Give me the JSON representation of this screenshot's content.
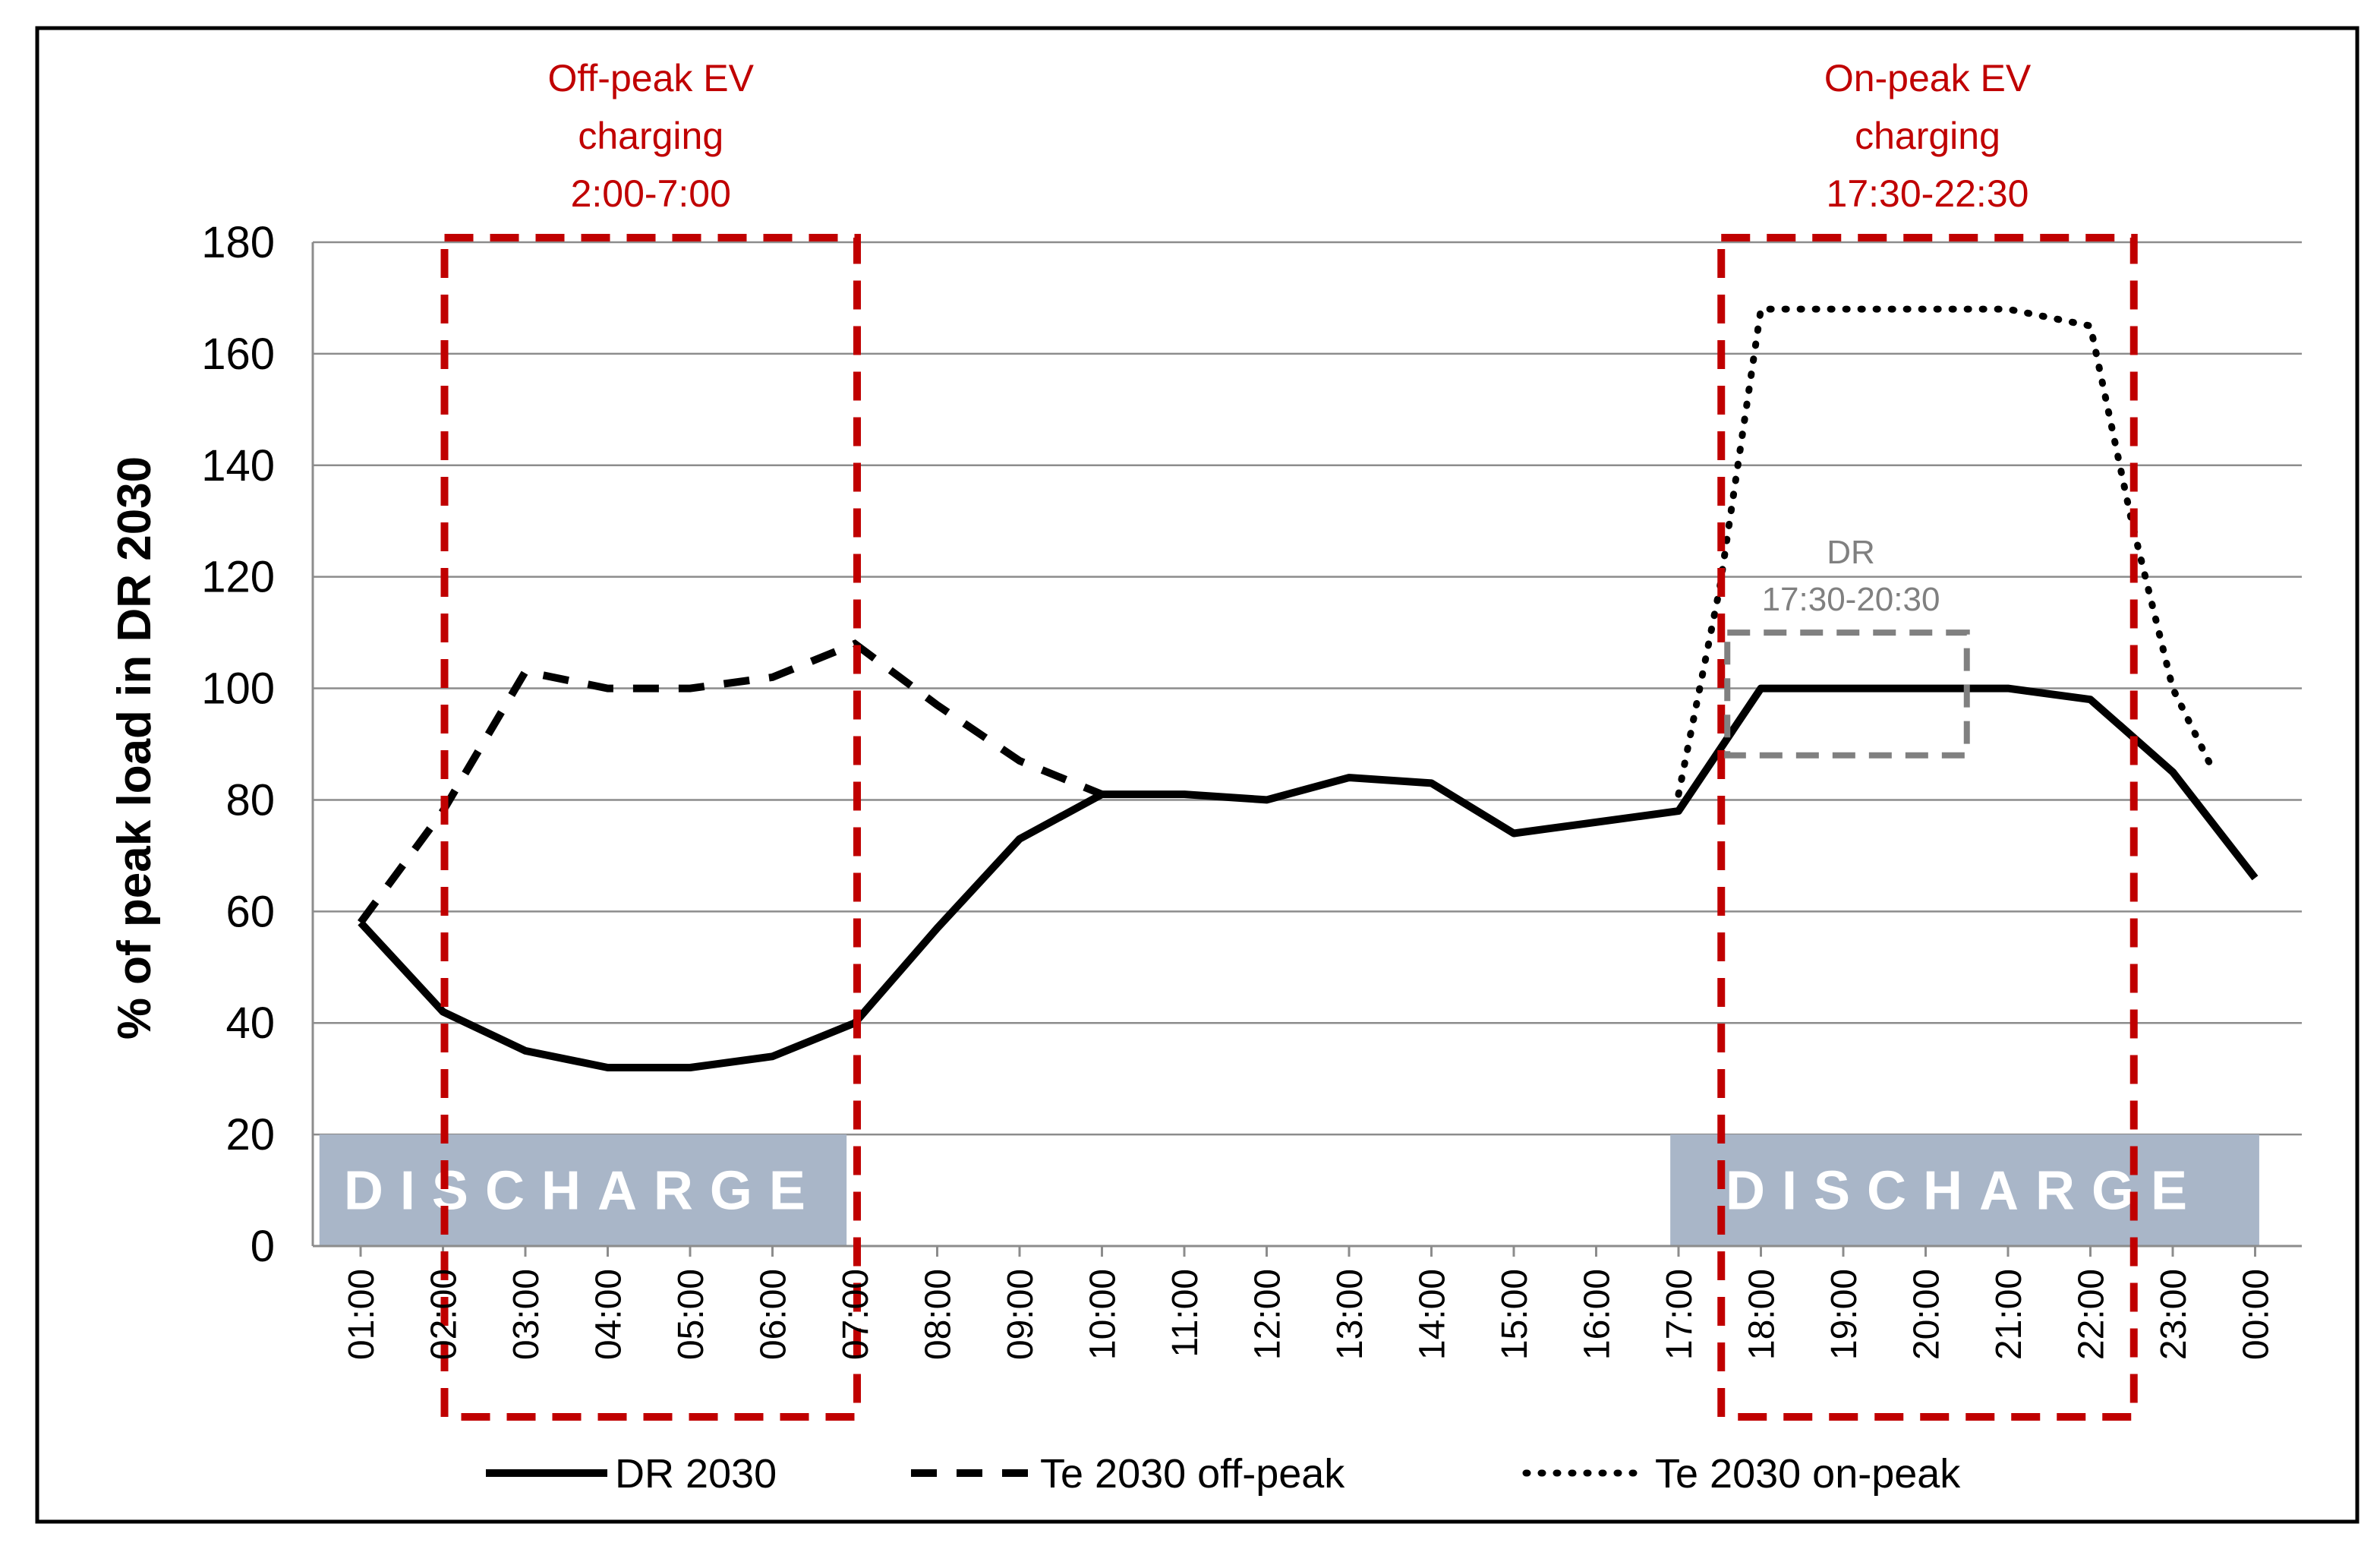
{
  "chart_data": {
    "type": "line",
    "title": "",
    "xlabel": "",
    "ylabel": "% of peak load in DR 2030",
    "ylim": [
      0,
      180
    ],
    "yticks": [
      0,
      20,
      40,
      60,
      80,
      100,
      120,
      140,
      160,
      180
    ],
    "grid": true,
    "categories": [
      "01:00",
      "02:00",
      "03:00",
      "04:00",
      "05:00",
      "06:00",
      "07:00",
      "08:00",
      "09:00",
      "10:00",
      "11:00",
      "12:00",
      "13:00",
      "14:00",
      "15:00",
      "16:00",
      "17:00",
      "18:00",
      "19:00",
      "20:00",
      "21:00",
      "22:00",
      "23:00",
      "00:00"
    ],
    "series": [
      {
        "name": "DR 2030",
        "style": "solid",
        "x": [
          0,
          1,
          2,
          3,
          4,
          5,
          6,
          7,
          8,
          9,
          10,
          11,
          12,
          13,
          14,
          15,
          16,
          17,
          18,
          19,
          20,
          21,
          22,
          23
        ],
        "values": [
          58,
          42,
          35,
          32,
          32,
          34,
          40,
          57,
          73,
          81,
          81,
          80,
          84,
          83,
          74,
          76,
          78,
          100,
          100,
          100,
          100,
          98,
          85,
          66
        ]
      },
      {
        "name": "Te 2030 off-peak",
        "style": "dashed",
        "x": [
          0,
          1,
          2,
          3,
          4,
          5,
          6,
          7,
          8,
          9
        ],
        "values": [
          58,
          78,
          103,
          100,
          100,
          102,
          108,
          97,
          87,
          81
        ]
      },
      {
        "name": "Te 2030 on-peak",
        "style": "dotted",
        "x": [
          16,
          16.5,
          17,
          18,
          19,
          20,
          21,
          21.5,
          22,
          22.5
        ],
        "values": [
          81,
          118,
          168,
          168,
          168,
          168,
          165,
          130,
          100,
          85
        ]
      }
    ],
    "annotations": [
      {
        "id": "off-peak-window",
        "text": [
          "Off-peak EV",
          "charging",
          "2:00-7:00"
        ],
        "color": "#c00000",
        "x_start": 1,
        "x_end": 6
      },
      {
        "id": "on-peak-window",
        "text": [
          "On-peak EV",
          "charging",
          "17:30-22:30"
        ],
        "color": "#c00000",
        "x_start": 16.5,
        "x_end": 21.5
      },
      {
        "id": "dr-window",
        "text": [
          "DR",
          "17:30-20:30"
        ],
        "color": "#808080",
        "x_start": 16.5,
        "x_end": 19.5,
        "y_low": 88,
        "y_high": 110
      },
      {
        "id": "discharge-left",
        "text": "DISCHARGE",
        "x_start": -0.5,
        "x_end": 5.9,
        "y_low": 0,
        "y_high": 20
      },
      {
        "id": "discharge-right",
        "text": "DISCHARGE",
        "x_start": 15.9,
        "x_end": 23.05,
        "y_low": 0,
        "y_high": 20
      }
    ],
    "legend": [
      "DR 2030",
      "Te 2030 off-peak",
      "Te 2030 on-peak"
    ],
    "legend_position": "bottom"
  }
}
